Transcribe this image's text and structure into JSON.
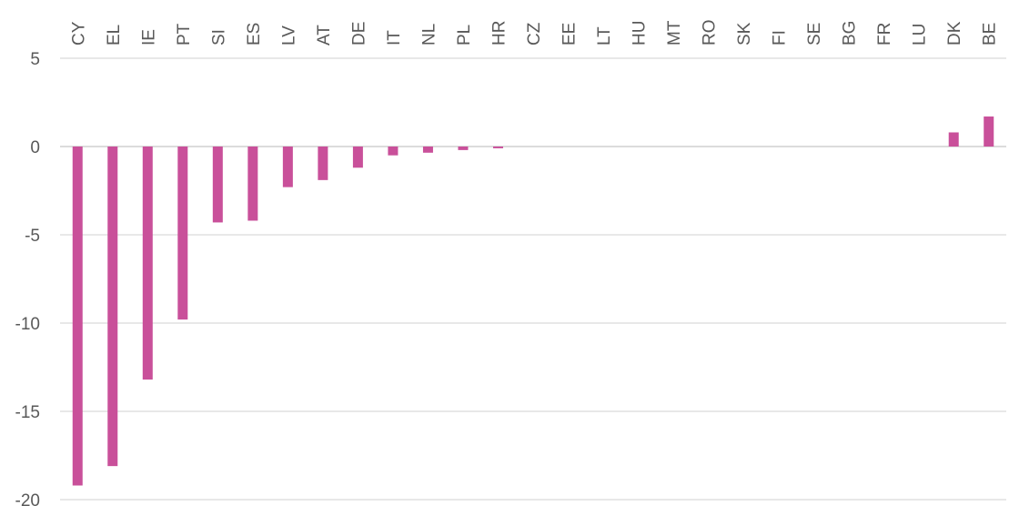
{
  "chart_data": {
    "type": "bar",
    "title": "",
    "xlabel": "",
    "ylabel": "",
    "categories": [
      "CY",
      "EL",
      "IE",
      "PT",
      "SI",
      "ES",
      "LV",
      "AT",
      "DE",
      "IT",
      "NL",
      "PL",
      "HR",
      "CZ",
      "EE",
      "LT",
      "HU",
      "MT",
      "RO",
      "SK",
      "FI",
      "SE",
      "BG",
      "FR",
      "LU",
      "DK",
      "BE"
    ],
    "values": [
      -19.2,
      -18.1,
      -13.2,
      -9.8,
      -4.3,
      -4.2,
      -2.3,
      -1.9,
      -1.2,
      -0.5,
      -0.35,
      -0.2,
      -0.1,
      0,
      0,
      0,
      0,
      0,
      0,
      0,
      0,
      0,
      0,
      0,
      0,
      0.8,
      1.7
    ],
    "ylim": [
      -20,
      5
    ],
    "yticks": [
      5,
      0,
      -5,
      -10,
      -15,
      -20
    ],
    "grid": true,
    "legend": "none",
    "bar_color": "#c9509a"
  }
}
